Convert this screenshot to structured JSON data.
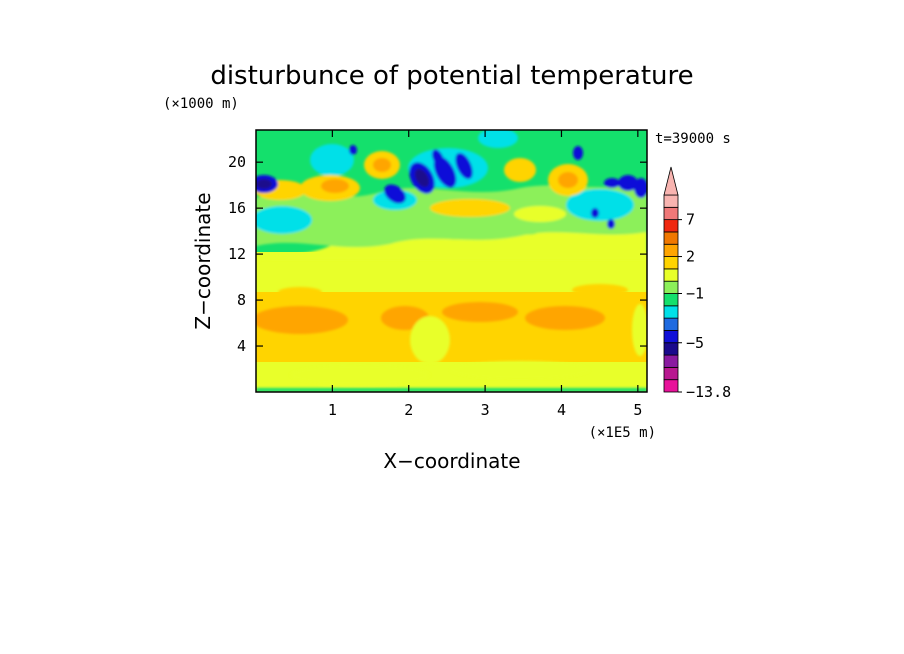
{
  "chart_data": {
    "type": "heatmap",
    "title": "disturbunce of potential temperature",
    "xlabel": "X−coordinate",
    "ylabel": "Z−coordinate",
    "x_unit": "(×1E5 m)",
    "y_unit": "(×1000 m)",
    "time_label": "t=39000 s",
    "xlim": [
      0,
      5.12
    ],
    "ylim": [
      0,
      22.8
    ],
    "x_ticks": [
      "1",
      "2",
      "3",
      "4",
      "5"
    ],
    "y_ticks": [
      "4",
      "8",
      "12",
      "16",
      "20"
    ],
    "colorbar": {
      "labels": [
        "7",
        "2",
        "−1",
        "−5",
        "−13.8"
      ],
      "label_values": [
        7,
        2,
        -1,
        -5,
        -13.8
      ],
      "levels": [
        -13.8,
        -11,
        -9,
        -7,
        -5,
        -4,
        -3,
        -2,
        -1,
        0,
        1,
        2,
        3,
        5,
        7,
        9,
        12
      ],
      "colors": [
        "#e8129a",
        "#b81890",
        "#8a1aa0",
        "#1a0a8c",
        "#1010d8",
        "#1e6ae0",
        "#00e0e8",
        "#14e06c",
        "#8cf05a",
        "#e8ff2a",
        "#ffd400",
        "#ffa500",
        "#f07800",
        "#f02810",
        "#f07878",
        "#f8b4b0"
      ]
    }
  }
}
